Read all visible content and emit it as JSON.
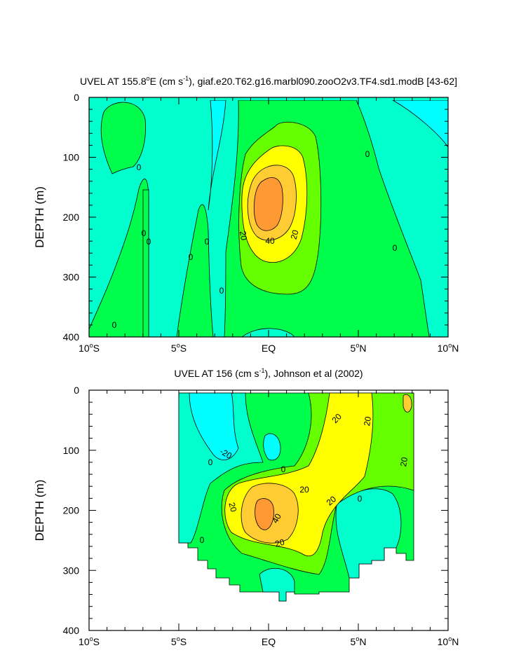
{
  "colors": {
    "neg20": "#00ffff",
    "neg10": "#00ffcc",
    "z0_10": "#00ff4c",
    "z10_20": "#66ff00",
    "z20_30": "#ffff00",
    "z30_40": "#ffcc33",
    "z40_50": "#ff9933",
    "line": "#000000"
  },
  "chart_data": [
    {
      "type": "contour",
      "title": "UVEL AT 155.8°E (cm s⁻¹), giaf.e20.T62.g16.marbl090.zooO2v3.TF4.sd1.modB [43-62]",
      "title_parts": {
        "pre": "UVEL AT 155.8",
        "deg": "o",
        "mid": "E (cm s",
        "sup": "-1",
        "post": "), giaf.e20.T62.g16.marbl090.zooO2v3.TF4.sd1.modB [43-62]"
      },
      "ylabel": "DEPTH (m)",
      "xlim": [
        -10,
        10
      ],
      "ylim": [
        400,
        0
      ],
      "x_ticks": [
        {
          "value": -10,
          "num": "10",
          "hem": "S"
        },
        {
          "value": -5,
          "num": "5",
          "hem": "S"
        },
        {
          "value": 0,
          "num": "EQ",
          "hem": ""
        },
        {
          "value": 5,
          "num": "5",
          "hem": "N"
        },
        {
          "value": 10,
          "num": "10",
          "hem": "N"
        }
      ],
      "y_ticks": [
        0,
        100,
        200,
        300,
        400
      ],
      "contour_levels": [
        -20,
        -10,
        0,
        10,
        20,
        30,
        40
      ],
      "contour_labels": [
        "0",
        "0",
        "0",
        "0",
        "0",
        "0",
        "0",
        "0",
        "0",
        "20",
        "20",
        "40"
      ],
      "core": {
        "lat": 0,
        "depth": 180,
        "max_speed_approx": 45
      }
    },
    {
      "type": "contour",
      "title": "UVEL AT 156 (cm s⁻¹), Johnson et al (2002)",
      "title_parts": {
        "pre": "UVEL AT 156 (cm s",
        "sup": "-1",
        "post": "), Johnson et al (2002)"
      },
      "ylabel": "DEPTH (m)",
      "xlim": [
        -10,
        10
      ],
      "ylim": [
        400,
        0
      ],
      "x_ticks": [
        {
          "value": -10,
          "num": "10",
          "hem": "S"
        },
        {
          "value": -5,
          "num": "5",
          "hem": "S"
        },
        {
          "value": 0,
          "num": "EQ",
          "hem": ""
        },
        {
          "value": 5,
          "num": "5",
          "hem": "N"
        },
        {
          "value": 10,
          "num": "10",
          "hem": "N"
        }
      ],
      "y_ticks": [
        0,
        100,
        200,
        300,
        400
      ],
      "data_extent": {
        "lat": [
          -5,
          8
        ],
        "depth": [
          0,
          350
        ]
      },
      "contour_levels": [
        -20,
        -10,
        0,
        10,
        20,
        30,
        40
      ],
      "contour_labels": [
        "20",
        "20",
        "-20",
        "0",
        "0",
        "0",
        "0",
        "20",
        "20",
        "20",
        "20",
        "40",
        "20"
      ],
      "core": {
        "lat": -0.3,
        "depth": 210,
        "max_speed_approx": 45
      }
    }
  ]
}
